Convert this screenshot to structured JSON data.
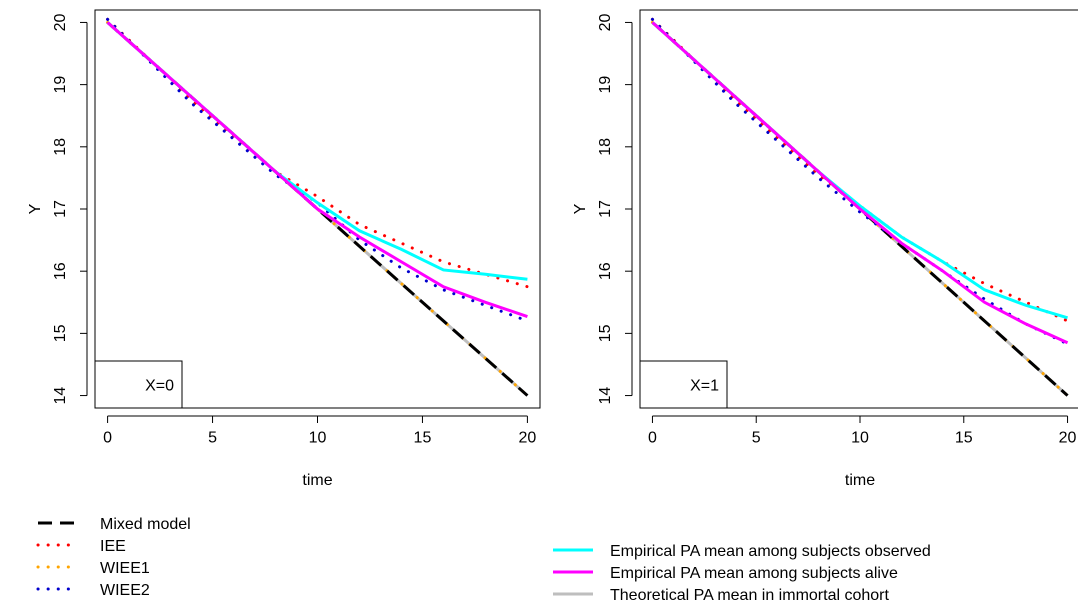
{
  "chart_data": [
    {
      "type": "line",
      "xlabel": "time",
      "ylabel": "Y",
      "xlim": [
        -0.6,
        20.6
      ],
      "ylim": [
        13.8,
        20.2
      ],
      "xticks": [
        0,
        5,
        10,
        15,
        20
      ],
      "yticks": [
        14,
        15,
        16,
        17,
        18,
        19,
        20
      ],
      "grid": false,
      "annotation": "X=0",
      "series": [
        {
          "name": "Theoretical PA mean in immortal cohort",
          "style": "solid",
          "color": "#BEBEBE",
          "x": [
            0,
            20
          ],
          "y": [
            20.0,
            14.0
          ]
        },
        {
          "name": "WIEE1",
          "style": "dotted",
          "color": "#FFA500",
          "x": [
            0,
            5,
            10,
            15,
            20
          ],
          "y": [
            20.0,
            18.5,
            17.0,
            15.5,
            14.0
          ]
        },
        {
          "name": "Mixed model",
          "style": "dashed",
          "color": "#000000",
          "x": [
            0,
            5,
            10,
            15,
            20
          ],
          "y": [
            20.0,
            18.5,
            17.0,
            15.5,
            14.0
          ]
        },
        {
          "name": "IEE",
          "style": "dotted",
          "color": "#FF0000",
          "x": [
            0,
            4,
            8,
            10,
            12,
            14,
            16,
            18,
            20
          ],
          "y": [
            20.05,
            18.75,
            17.6,
            17.2,
            16.75,
            16.45,
            16.15,
            15.95,
            15.75
          ]
        },
        {
          "name": "WIEE2",
          "style": "dotted",
          "color": "#0000CD",
          "x": [
            0,
            4,
            8,
            10,
            12,
            14,
            16,
            18,
            20
          ],
          "y": [
            20.05,
            18.7,
            17.55,
            17.1,
            16.5,
            16.05,
            15.7,
            15.45,
            15.2
          ]
        },
        {
          "name": "Empirical PA mean among subjects observed",
          "style": "solid",
          "color": "#00FFFF",
          "x": [
            0,
            4,
            8,
            10,
            12,
            14,
            16,
            18,
            20
          ],
          "y": [
            20.0,
            18.8,
            17.6,
            17.1,
            16.65,
            16.35,
            16.02,
            15.95,
            15.87
          ]
        },
        {
          "name": "Empirical PA mean among subjects alive",
          "style": "solid",
          "color": "#FF00FF",
          "x": [
            0,
            4,
            8,
            10,
            12,
            14,
            16,
            18,
            20
          ],
          "y": [
            20.0,
            18.8,
            17.6,
            17.0,
            16.55,
            16.15,
            15.75,
            15.5,
            15.27
          ]
        }
      ]
    },
    {
      "type": "line",
      "xlabel": "time",
      "ylabel": "Y",
      "xlim": [
        -0.6,
        20.6
      ],
      "ylim": [
        13.8,
        20.2
      ],
      "xticks": [
        0,
        5,
        10,
        15,
        20
      ],
      "yticks": [
        14,
        15,
        16,
        17,
        18,
        19,
        20
      ],
      "grid": false,
      "annotation": "X=1",
      "series": [
        {
          "name": "Theoretical PA mean in immortal cohort",
          "style": "solid",
          "color": "#BEBEBE",
          "x": [
            0,
            20
          ],
          "y": [
            20.0,
            14.0
          ]
        },
        {
          "name": "WIEE1",
          "style": "dotted",
          "color": "#FFA500",
          "x": [
            0,
            5,
            10,
            15,
            20
          ],
          "y": [
            20.0,
            18.5,
            17.0,
            15.5,
            14.0
          ]
        },
        {
          "name": "Mixed model",
          "style": "dashed",
          "color": "#000000",
          "x": [
            0,
            5,
            10,
            15,
            20
          ],
          "y": [
            20.0,
            18.5,
            17.0,
            15.5,
            14.0
          ]
        },
        {
          "name": "IEE",
          "style": "dotted",
          "color": "#FF0000",
          "x": [
            0,
            4,
            8,
            10,
            12,
            14,
            16,
            18,
            20
          ],
          "y": [
            20.05,
            18.75,
            17.55,
            17.05,
            16.55,
            16.15,
            15.8,
            15.5,
            15.2
          ]
        },
        {
          "name": "WIEE2",
          "style": "dotted",
          "color": "#0000CD",
          "x": [
            0,
            4,
            8,
            10,
            12,
            14,
            16,
            18,
            20
          ],
          "y": [
            20.05,
            18.7,
            17.5,
            16.95,
            16.45,
            16.0,
            15.55,
            15.15,
            14.83
          ]
        },
        {
          "name": "Empirical PA mean among subjects observed",
          "style": "solid",
          "color": "#00FFFF",
          "x": [
            0,
            4,
            8,
            10,
            12,
            14,
            16,
            18,
            20
          ],
          "y": [
            20.0,
            18.8,
            17.6,
            17.05,
            16.55,
            16.15,
            15.7,
            15.45,
            15.25
          ]
        },
        {
          "name": "Empirical PA mean among subjects alive",
          "style": "solid",
          "color": "#FF00FF",
          "x": [
            0,
            4,
            8,
            10,
            12,
            14,
            16,
            18,
            20
          ],
          "y": [
            20.0,
            18.8,
            17.6,
            17.0,
            16.45,
            16.0,
            15.5,
            15.15,
            14.85
          ]
        }
      ]
    }
  ],
  "legend_left": [
    {
      "label": "Mixed model",
      "style": "dashed",
      "color": "#000000"
    },
    {
      "label": "IEE",
      "style": "dotted",
      "color": "#FF0000"
    },
    {
      "label": "WIEE1",
      "style": "dotted",
      "color": "#FFA500"
    },
    {
      "label": "WIEE2",
      "style": "dotted",
      "color": "#0000CD"
    }
  ],
  "legend_right": [
    {
      "label": "Empirical PA mean among subjects observed",
      "style": "solid",
      "color": "#00FFFF"
    },
    {
      "label": "Empirical PA mean among subjects alive",
      "style": "solid",
      "color": "#FF00FF"
    },
    {
      "label": "Theoretical PA mean in immortal cohort",
      "style": "solid",
      "color": "#BEBEBE"
    }
  ]
}
